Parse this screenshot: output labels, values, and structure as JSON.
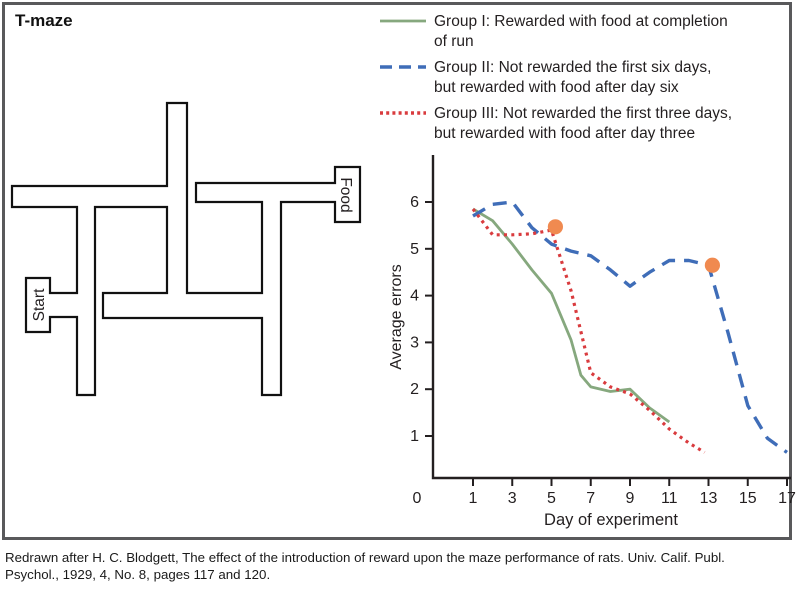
{
  "figure": {
    "title": "T-maze",
    "caption_lines": [
      "Redrawn after H. C. Blodgett, The effect of the introduction of reward upon the maze performance of rats. Univ. Calif. Publ.",
      "Psychol., 1929, 4, No. 8, pages 117 and 120."
    ]
  },
  "maze": {
    "start_label": "Start",
    "food_label": "Food"
  },
  "legend": {
    "items": [
      {
        "group": "Group I",
        "style": "solid",
        "color": "#86a87e",
        "lines": [
          "Group I: Rewarded with food at completion",
          "of run"
        ]
      },
      {
        "group": "Group II",
        "style": "dashed",
        "color": "#3f6db8",
        "lines": [
          "Group II: Not rewarded the first six days,",
          "but rewarded with food after day six"
        ]
      },
      {
        "group": "Group III",
        "style": "dotted",
        "color": "#d93b3e",
        "lines": [
          "Group III: Not rewarded the first three days,",
          "but rewarded with food after day three"
        ]
      }
    ]
  },
  "chart_data": {
    "type": "line",
    "title": "",
    "xlabel": "Day of experiment",
    "ylabel": "Average errors",
    "xlim": [
      0,
      17
    ],
    "ylim": [
      0,
      6.5
    ],
    "xticks": [
      1,
      3,
      5,
      7,
      9,
      11,
      13,
      15,
      17
    ],
    "origin_label": "0",
    "yticks": [
      1,
      2,
      3,
      4,
      5,
      6
    ],
    "grid": false,
    "legend_position": "outside-top-right",
    "series": [
      {
        "name": "Group I",
        "style": "solid",
        "color": "#86a87e",
        "points": [
          [
            1,
            5.85
          ],
          [
            2,
            5.6
          ],
          [
            3,
            5.1
          ],
          [
            4,
            4.55
          ],
          [
            5,
            4.05
          ],
          [
            6,
            3.05
          ],
          [
            6.5,
            2.3
          ],
          [
            7,
            2.05
          ],
          [
            8,
            1.95
          ],
          [
            9,
            2.0
          ],
          [
            10,
            1.6
          ],
          [
            11,
            1.3
          ]
        ]
      },
      {
        "name": "Group II",
        "style": "dashed",
        "color": "#3f6db8",
        "points": [
          [
            1,
            5.7
          ],
          [
            2,
            5.95
          ],
          [
            3,
            6.0
          ],
          [
            4,
            5.45
          ],
          [
            5,
            5.1
          ],
          [
            6,
            4.95
          ],
          [
            7,
            4.85
          ],
          [
            8,
            4.55
          ],
          [
            9,
            4.2
          ],
          [
            10,
            4.5
          ],
          [
            11,
            4.75
          ],
          [
            12,
            4.75
          ],
          [
            13,
            4.65
          ],
          [
            14,
            3.2
          ],
          [
            15,
            1.65
          ],
          [
            16,
            0.95
          ],
          [
            17,
            0.65
          ]
        ]
      },
      {
        "name": "Group III",
        "style": "dotted",
        "color": "#d93b3e",
        "points": [
          [
            1,
            5.85
          ],
          [
            2,
            5.3
          ],
          [
            3,
            5.3
          ],
          [
            4,
            5.32
          ],
          [
            5,
            5.4
          ],
          [
            6,
            4.1
          ],
          [
            7,
            2.35
          ],
          [
            8,
            2.05
          ],
          [
            9,
            1.9
          ],
          [
            10,
            1.55
          ],
          [
            11,
            1.15
          ],
          [
            12,
            0.85
          ],
          [
            12.8,
            0.65
          ]
        ]
      }
    ],
    "markers": [
      {
        "day": 5.2,
        "value": 5.47,
        "color": "#f08a50",
        "on_series": "Group III"
      },
      {
        "day": 13.2,
        "value": 4.65,
        "color": "#f08a50",
        "on_series": "Group II"
      }
    ]
  }
}
